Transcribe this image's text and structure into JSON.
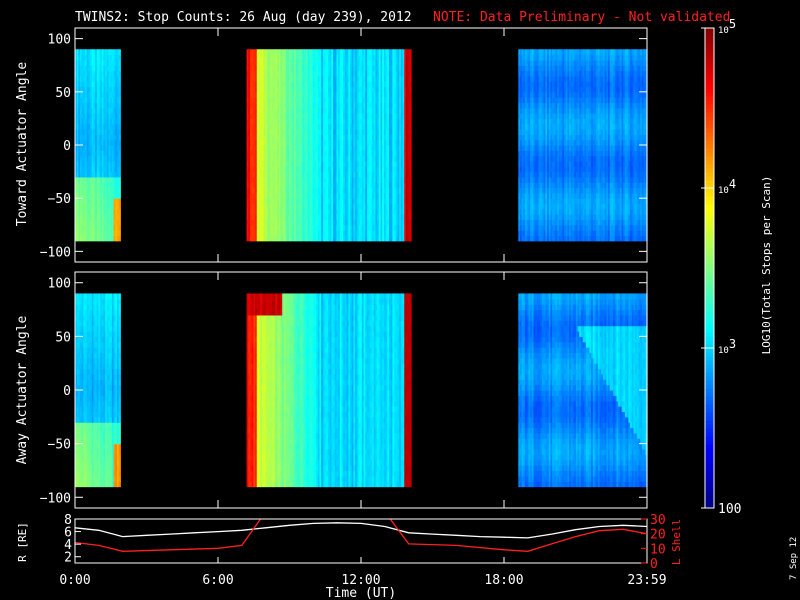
{
  "title": "TWINS2: Stop Counts: 26 Aug (day 239), 2012",
  "note": "NOTE: Data Preliminary - Not validated",
  "date_stamp": "7 Sep 12",
  "colors": {
    "background": "#000000",
    "axis": "#ffffff",
    "note": "#ff2020",
    "r_line": "#ffffff",
    "lshell_line": "#ff2020"
  },
  "chart_data": [
    {
      "type": "heatmap",
      "name": "toward",
      "ylabel": "Toward Actuator Angle",
      "xlim": [
        0,
        24
      ],
      "ylim": [
        -110,
        110
      ],
      "yticks": [
        100,
        50,
        0,
        -50,
        -100
      ],
      "data_y_range": [
        -90,
        90
      ],
      "data_x_segments": [
        [
          0.0,
          1.9
        ],
        [
          7.2,
          14.1
        ],
        [
          18.6,
          24.0
        ]
      ],
      "hot_edges": [
        7.2,
        14.0
      ],
      "colorscale": "log10 total stops per scan"
    },
    {
      "type": "heatmap",
      "name": "away",
      "ylabel": "Away Actuator Angle",
      "xlim": [
        0,
        24
      ],
      "ylim": [
        -110,
        110
      ],
      "yticks": [
        100,
        50,
        0,
        -50,
        -100
      ],
      "data_y_range": [
        -90,
        90
      ],
      "data_x_segments": [
        [
          0.0,
          1.9
        ],
        [
          7.2,
          14.1
        ],
        [
          18.6,
          24.0
        ]
      ],
      "hot_edges": [
        7.2,
        14.0
      ],
      "colorscale": "log10 total stops per scan"
    },
    {
      "type": "line",
      "ylabel_left": "R [RE]",
      "ylabel_right": "L Shell",
      "xlabel": "Time (UT)",
      "xlim": [
        0,
        24
      ],
      "xticks": [
        "0:00",
        "6:00",
        "12:00",
        "18:00",
        "23:59"
      ],
      "yticks_left": [
        8,
        6,
        4,
        2
      ],
      "ylim_left": [
        1,
        8
      ],
      "yticks_right": [
        30,
        20,
        10,
        0
      ],
      "ylim_right": [
        0,
        30
      ],
      "series": [
        {
          "axis": "left",
          "x": [
            0,
            1,
            2,
            3,
            4,
            5,
            6,
            7,
            8,
            9,
            10,
            11,
            12,
            13,
            14,
            15,
            16,
            17,
            18,
            19,
            20,
            21,
            22,
            23,
            24
          ],
          "y": [
            6.6,
            6.2,
            5.2,
            5.4,
            5.6,
            5.8,
            6.0,
            6.2,
            6.6,
            7.0,
            7.3,
            7.4,
            7.3,
            6.8,
            5.8,
            5.6,
            5.4,
            5.2,
            5.1,
            5.0,
            5.6,
            6.3,
            6.8,
            7.0,
            6.8
          ]
        },
        {
          "axis": "right",
          "x": [
            0,
            1,
            2,
            4,
            6,
            7,
            8,
            13,
            14,
            16,
            18,
            19,
            20,
            21,
            22,
            23,
            24
          ],
          "y": [
            14,
            12,
            8,
            9,
            10,
            12,
            35,
            35,
            13,
            12,
            9,
            8,
            13,
            18,
            22,
            23,
            20
          ]
        }
      ]
    }
  ],
  "colorbar": {
    "label": "LOG10(Total Stops per Scan)",
    "ticks": [
      {
        "base": "10",
        "exp": "5"
      },
      {
        "base": "10",
        "exp": "4"
      },
      {
        "base": "10",
        "exp": "3"
      },
      {
        "base": "100",
        "exp": ""
      }
    ],
    "log_range": [
      2,
      5
    ]
  }
}
